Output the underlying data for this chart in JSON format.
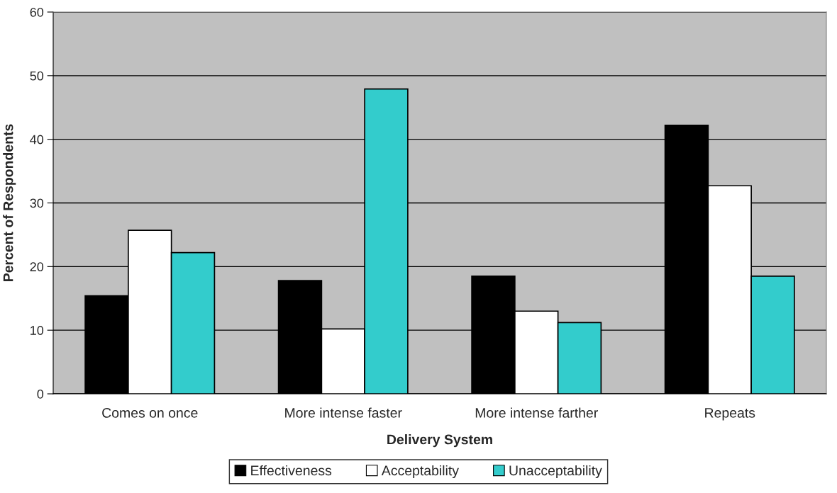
{
  "chart_data": {
    "type": "bar",
    "xlabel": "Delivery System",
    "ylabel": "Percent of Respondents",
    "categories": [
      "Comes on once",
      "More intense faster",
      "More intense farther",
      "Repeats"
    ],
    "series": [
      {
        "name": "Effectiveness",
        "color": "#000000",
        "values": [
          15.4,
          17.8,
          18.5,
          42.2
        ]
      },
      {
        "name": "Acceptability",
        "color": "#ffffff",
        "values": [
          25.7,
          10.2,
          13.0,
          32.7
        ]
      },
      {
        "name": "Unacceptability",
        "color": "#33cccc",
        "values": [
          22.2,
          47.9,
          11.2,
          18.5
        ]
      }
    ],
    "ylim": [
      0,
      60
    ],
    "yticks": [
      0,
      10,
      20,
      30,
      40,
      50,
      60
    ],
    "grid": "y",
    "legend": "bottom"
  }
}
